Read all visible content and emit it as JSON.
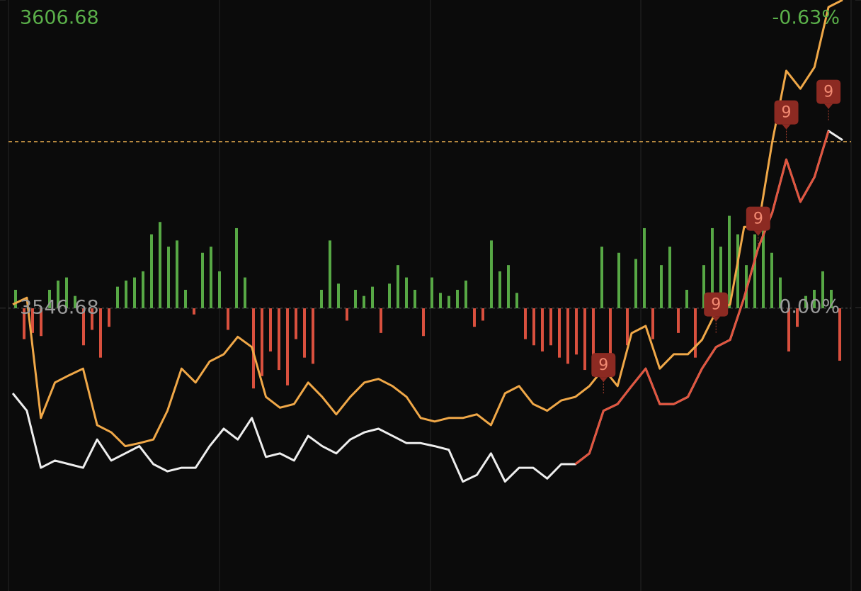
{
  "chart_data": [
    {
      "type": "line",
      "categories": [
        null,
        null,
        null,
        null,
        null,
        null,
        null,
        null,
        null,
        null,
        null,
        null,
        null,
        null,
        null,
        null,
        null,
        null,
        null,
        null,
        null,
        null,
        null,
        null,
        null,
        null,
        null,
        null,
        null,
        null,
        null,
        null,
        null,
        null,
        null,
        null,
        null,
        null,
        null,
        null,
        null,
        null,
        null,
        null,
        null,
        null,
        null,
        null,
        null,
        null,
        null,
        null,
        null,
        null,
        null,
        null,
        null,
        null,
        null,
        null
      ],
      "ylim": [
        3491.6,
        3606.68
      ],
      "yticks": [
        {
          "value": 3606.68,
          "label": "3606.68"
        },
        {
          "value": 3546.68,
          "label": "3546.68"
        }
      ],
      "y2lim": [
        0.58,
        -0.63
      ],
      "y2ticks": [
        {
          "value": -0.63,
          "label": "-0.63%"
        },
        {
          "value": 0,
          "label": "0.00%"
        }
      ],
      "reference_line": 3579.1,
      "series": [
        {
          "color": "#f0a848",
          "values": [
            3547.4,
            3548.7,
            3525.3,
            3532.2,
            3533.6,
            3534.9,
            3523.9,
            3522.5,
            3519.8,
            3520.4,
            3521.1,
            3526.7,
            3534.9,
            3532.2,
            3536.3,
            3537.7,
            3541.1,
            3539.1,
            3529.4,
            3527.3,
            3528.0,
            3532.2,
            3529.4,
            3526.0,
            3529.4,
            3532.2,
            3532.9,
            3531.5,
            3529.4,
            3525.3,
            3524.6,
            3525.3,
            3525.3,
            3526.0,
            3523.9,
            3530.1,
            3531.5,
            3528.0,
            3526.7,
            3528.7,
            3529.4,
            3531.5,
            3534.9,
            3531.5,
            3541.8,
            3543.2,
            3534.9,
            3537.7,
            3537.7,
            3540.5,
            3546.0,
            3547.4,
            3562.5,
            3562.5,
            3579.1,
            3592.9,
            3589.4,
            3593.6,
            3605.3,
            3606.7
          ]
        },
        {
          "color": "#eeeeee",
          "values": [
            3530.1,
            3526.7,
            3515.6,
            3517.0,
            3516.3,
            3515.6,
            3521.1,
            3517.0,
            3518.4,
            3519.8,
            3516.3,
            3514.9,
            3515.6,
            3515.6,
            3519.8,
            3523.2,
            3521.1,
            3525.3,
            3517.7,
            3518.4,
            3517.0,
            3521.8,
            3519.8,
            3518.4,
            3521.1,
            3522.5,
            3523.2,
            3521.8,
            3520.4,
            3520.4,
            3519.8,
            3519.1,
            3512.9,
            3514.2,
            3518.4,
            3512.9,
            3515.6,
            3515.6,
            3513.5,
            3516.3,
            3516.3,
            3518.4,
            3526.7,
            3528.0,
            3531.5,
            3534.9,
            3528.0,
            3528.0,
            3529.4,
            3534.9,
            3539.1,
            3540.5,
            3548.7,
            3558.4,
            3565.3,
            3575.6,
            3567.4,
            3572.2,
            3581.2,
            3579.4
          ]
        },
        {
          "color": "#e2553f",
          "values": [
            null,
            null,
            null,
            null,
            null,
            null,
            null,
            null,
            null,
            null,
            null,
            null,
            null,
            null,
            null,
            null,
            null,
            null,
            null,
            null,
            null,
            null,
            null,
            null,
            null,
            null,
            null,
            null,
            null,
            null,
            null,
            null,
            null,
            null,
            null,
            null,
            null,
            null,
            null,
            null,
            3516.3,
            3518.4,
            3526.7,
            3528.0,
            3531.5,
            3534.9,
            3528.0,
            3528.0,
            3529.4,
            3534.9,
            3539.1,
            3540.5,
            3548.7,
            3558.4,
            3565.3,
            3575.6,
            3567.4,
            3572.2,
            3581.2,
            null
          ]
        }
      ],
      "annotations": [
        {
          "label": "9",
          "index": 42,
          "value": 3535.6
        },
        {
          "label": "9",
          "index": 50,
          "value": 3547.4
        },
        {
          "label": "9",
          "index": 53,
          "value": 3564.1
        },
        {
          "label": "9",
          "index": 55,
          "value": 3584.8
        },
        {
          "label": "9",
          "index": 58,
          "value": 3588.8
        }
      ]
    },
    {
      "type": "bar",
      "ylim": [
        -91.7,
        100
      ],
      "up_color": "#57a845",
      "down_color": "#d9503e",
      "values": [
        6,
        -10,
        -8,
        -9,
        6,
        9,
        10,
        4,
        -12,
        -7,
        -16,
        -6,
        7,
        9,
        10,
        12,
        24,
        28,
        20,
        22,
        6,
        -2,
        18,
        20,
        12,
        -7,
        26,
        10,
        -26,
        -22,
        -14,
        -20,
        -25,
        -10,
        -16,
        -18,
        6,
        22,
        8,
        -4,
        6,
        4,
        7,
        -8,
        8,
        14,
        10,
        6,
        -9,
        10,
        5,
        4,
        6,
        9,
        -6,
        -4,
        22,
        12,
        14,
        5,
        -10,
        -12,
        -14,
        -12,
        -16,
        -18,
        -15,
        -20,
        -22,
        20,
        -18,
        18,
        -12,
        16,
        26,
        -10,
        14,
        20,
        -8,
        6,
        -16,
        14,
        26,
        20,
        30,
        24,
        14,
        24,
        28,
        18,
        10,
        -14,
        -6,
        4,
        6,
        12,
        6,
        -17
      ]
    }
  ]
}
